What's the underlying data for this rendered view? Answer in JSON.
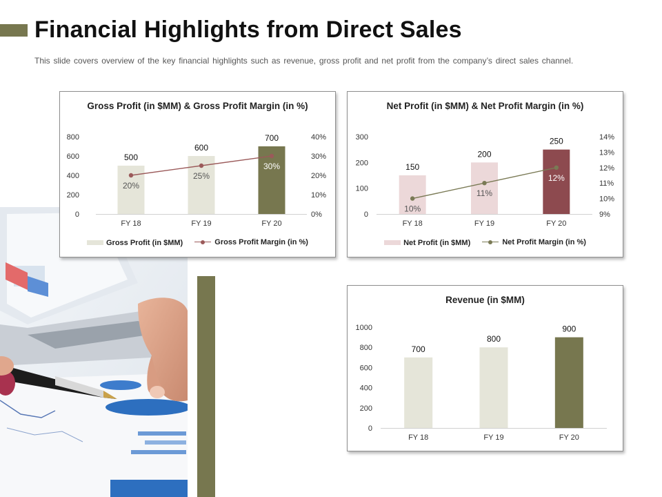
{
  "header": {
    "title": "Financial Highlights from Direct Sales",
    "subtitle": "This slide covers overview  of the key financial highlights such as revenue,  gross profit and net profit from the company’s direct sales channel."
  },
  "colors": {
    "accent_olive": "#77774f",
    "light_bar": "#e5e5d9",
    "pink_bar": "#ecd8d9",
    "maroon_bar": "#8d4a4f",
    "gross_margin_line": "#9b5a5a",
    "net_margin_line": "#7a7a55"
  },
  "chart_data": [
    {
      "id": "gross",
      "type": "bar",
      "title": "Gross Profit (in $MM) & Gross Profit Margin (in %)",
      "categories": [
        "FY 18",
        "FY 19",
        "FY 20"
      ],
      "series": [
        {
          "name": "Gross Profit (in $MM)",
          "values": [
            500,
            600,
            700
          ],
          "labels": [
            "500",
            "600",
            "700"
          ],
          "colors": [
            "#e5e5d9",
            "#e5e5d9",
            "#77774f"
          ]
        },
        {
          "name": "Gross Profit Margin (in %)",
          "type": "line",
          "axis": "secondary",
          "values": [
            20,
            25,
            30
          ],
          "labels": [
            "20%",
            "25%",
            "30%"
          ],
          "color": "#9b5a5a"
        }
      ],
      "ylim": [
        0,
        800
      ],
      "yticks": [
        "0",
        "200",
        "400",
        "600",
        "800"
      ],
      "y2lim": [
        0,
        40
      ],
      "y2ticks": [
        "0%",
        "10%",
        "20%",
        "30%",
        "40%"
      ],
      "grid": false,
      "legend": "bottom"
    },
    {
      "id": "net",
      "type": "bar",
      "title": "Net Profit (in $MM) & Net Profit Margin (in %)",
      "categories": [
        "FY 18",
        "FY 19",
        "FY 20"
      ],
      "series": [
        {
          "name": "Net Profit (in $MM)",
          "values": [
            150,
            200,
            250
          ],
          "labels": [
            "150",
            "200",
            "250"
          ],
          "colors": [
            "#ecd8d9",
            "#ecd8d9",
            "#8d4a4f"
          ]
        },
        {
          "name": "Net Profit Margin (in %)",
          "type": "line",
          "axis": "secondary",
          "values": [
            10,
            11,
            12
          ],
          "labels": [
            "10%",
            "11%",
            "12%"
          ],
          "color": "#7a7a55"
        }
      ],
      "ylim": [
        0,
        300
      ],
      "yticks": [
        "0",
        "100",
        "200",
        "300"
      ],
      "y2lim": [
        9,
        14
      ],
      "y2ticks": [
        "9%",
        "10%",
        "11%",
        "12%",
        "13%",
        "14%"
      ],
      "grid": false,
      "legend": "bottom"
    },
    {
      "id": "revenue",
      "type": "bar",
      "title": "Revenue (in $MM)",
      "categories": [
        "FY 18",
        "FY 19",
        "FY 20"
      ],
      "series": [
        {
          "name": "Revenue",
          "values": [
            700,
            800,
            900
          ],
          "labels": [
            "700",
            "800",
            "900"
          ],
          "colors": [
            "#e5e5d9",
            "#e5e5d9",
            "#77774f"
          ]
        }
      ],
      "ylim": [
        0,
        1000
      ],
      "yticks": [
        "0",
        "200",
        "400",
        "600",
        "800",
        "1000"
      ],
      "grid": false,
      "legend": "none"
    }
  ]
}
